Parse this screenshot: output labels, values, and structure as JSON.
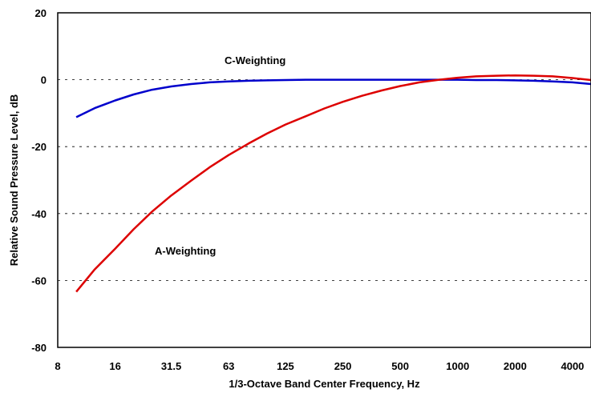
{
  "chart_data": {
    "type": "line",
    "xlabel": "1/3-Octave Band Center Frequency, Hz",
    "ylabel": "Relative Sound Pressure Level, dB",
    "x_scale": "log",
    "xlim": [
      8,
      5000
    ],
    "ylim": [
      -80,
      20
    ],
    "x_ticks": [
      "8",
      "16",
      "31.5",
      "63",
      "125",
      "250",
      "500",
      "1000",
      "2000",
      "4000"
    ],
    "y_ticks": [
      "20",
      "0",
      "-20",
      "-40",
      "-60",
      "-80"
    ],
    "grid": "horizontal dashed",
    "x": [
      10,
      12.5,
      16,
      20,
      25,
      31.5,
      40,
      50,
      63,
      80,
      100,
      125,
      160,
      200,
      250,
      315,
      400,
      500,
      630,
      800,
      1000,
      1250,
      1600,
      2000,
      2500,
      3150,
      4000,
      5000
    ],
    "series": [
      {
        "name": "C-Weighting",
        "color": "#0000cc",
        "values": [
          -11.2,
          -8.5,
          -6.2,
          -4.4,
          -3.0,
          -2.0,
          -1.3,
          -0.8,
          -0.5,
          -0.3,
          -0.2,
          -0.1,
          0,
          0,
          0,
          0,
          0,
          0,
          0,
          0,
          0,
          -0.1,
          -0.1,
          -0.2,
          -0.3,
          -0.5,
          -0.8,
          -1.3
        ]
      },
      {
        "name": "A-Weighting",
        "color": "#dd0000",
        "values": [
          -63.4,
          -56.7,
          -50.5,
          -44.7,
          -39.4,
          -34.6,
          -30.2,
          -26.2,
          -22.5,
          -19.1,
          -16.1,
          -13.4,
          -10.9,
          -8.6,
          -6.6,
          -4.8,
          -3.2,
          -1.9,
          -0.8,
          0,
          0.6,
          1.0,
          1.2,
          1.3,
          1.2,
          1.0,
          0.5,
          -0.1
        ]
      }
    ]
  }
}
